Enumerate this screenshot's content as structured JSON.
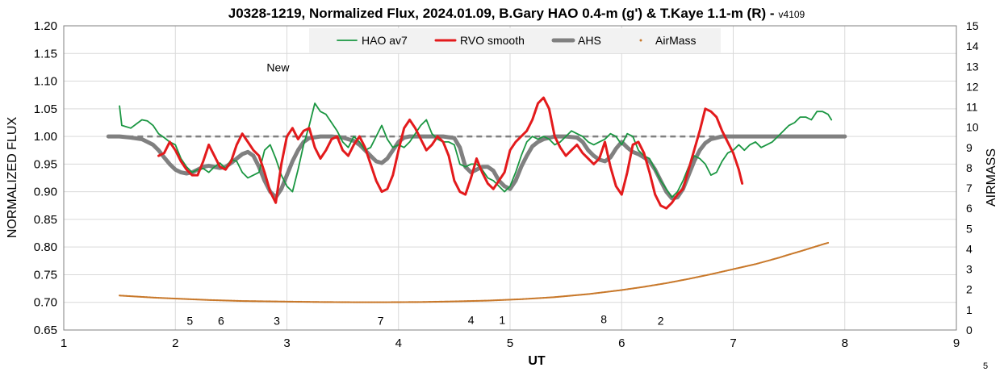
{
  "chart_data": {
    "type": "line",
    "title": "J0328-1219, Normalized Flux, 2024.01.09, B.Gary HAO 0.4-m (g') & T.Kaye 1.1-m (R) -",
    "title_version": "v4109",
    "xlabel": "UT",
    "ylabel": "NORMALIZED FLUX",
    "y2label": "AIRMASS",
    "xlim": [
      1,
      9
    ],
    "ylim": [
      0.65,
      1.2
    ],
    "y2lim": [
      0,
      15
    ],
    "x_ticks": [
      "1",
      "2",
      "3",
      "4",
      "5",
      "6",
      "7",
      "8",
      "9"
    ],
    "y_ticks": [
      "0.65",
      "0.70",
      "0.75",
      "0.80",
      "0.85",
      "0.90",
      "0.95",
      "1.00",
      "1.05",
      "1.10",
      "1.15",
      "1.20"
    ],
    "y2_ticks": [
      "0",
      "1",
      "2",
      "3",
      "4",
      "5",
      "6",
      "7",
      "8",
      "9",
      "10",
      "11",
      "12",
      "13",
      "14",
      "15"
    ],
    "grid": true,
    "legend_position": "top-center",
    "reference_line": 1.0,
    "annotations": [
      {
        "text": "New",
        "x": 2.92,
        "y": 1.125
      },
      {
        "text": "5",
        "x": 2.13,
        "y": 0.667
      },
      {
        "text": "6",
        "x": 2.41,
        "y": 0.667
      },
      {
        "text": "3",
        "x": 2.91,
        "y": 0.667
      },
      {
        "text": "7",
        "x": 3.84,
        "y": 0.667
      },
      {
        "text": "4",
        "x": 4.65,
        "y": 0.668
      },
      {
        "text": "1",
        "x": 4.93,
        "y": 0.668
      },
      {
        "text": "8",
        "x": 5.84,
        "y": 0.67
      },
      {
        "text": "2",
        "x": 6.35,
        "y": 0.667
      }
    ],
    "corner_label": "5",
    "series": [
      {
        "name": "HAO av7",
        "color": "#1a9641",
        "axis": "left",
        "x": [
          1.5,
          1.52,
          1.6,
          1.7,
          1.75,
          1.8,
          1.85,
          1.9,
          1.95,
          2.0,
          2.05,
          2.1,
          2.15,
          2.2,
          2.25,
          2.3,
          2.35,
          2.4,
          2.45,
          2.5,
          2.55,
          2.6,
          2.65,
          2.7,
          2.75,
          2.8,
          2.85,
          2.9,
          2.95,
          3.0,
          3.05,
          3.1,
          3.15,
          3.2,
          3.25,
          3.3,
          3.35,
          3.4,
          3.45,
          3.5,
          3.55,
          3.6,
          3.65,
          3.7,
          3.75,
          3.8,
          3.85,
          3.9,
          3.95,
          4.0,
          4.05,
          4.1,
          4.15,
          4.2,
          4.25,
          4.3,
          4.35,
          4.4,
          4.45,
          4.5,
          4.55,
          4.6,
          4.65,
          4.7,
          4.75,
          4.8,
          4.85,
          4.9,
          4.95,
          5.0,
          5.05,
          5.1,
          5.15,
          5.2,
          5.25,
          5.3,
          5.35,
          5.4,
          5.45,
          5.5,
          5.55,
          5.6,
          5.65,
          5.7,
          5.75,
          5.8,
          5.85,
          5.9,
          5.95,
          6.0,
          6.05,
          6.1,
          6.15,
          6.2,
          6.25,
          6.3,
          6.35,
          6.4,
          6.45,
          6.5,
          6.55,
          6.6,
          6.65,
          6.7,
          6.75,
          6.8,
          6.85,
          6.9,
          6.95,
          7.0,
          7.05,
          7.1,
          7.15,
          7.2,
          7.25,
          7.3,
          7.35,
          7.4,
          7.45,
          7.5,
          7.55,
          7.6,
          7.65,
          7.7,
          7.75,
          7.8,
          7.85,
          7.88
        ],
        "y": [
          1.055,
          1.02,
          1.015,
          1.03,
          1.028,
          1.02,
          1.005,
          0.998,
          0.99,
          0.985,
          0.96,
          0.945,
          0.935,
          0.94,
          0.942,
          0.935,
          0.945,
          0.952,
          0.942,
          0.958,
          0.955,
          0.935,
          0.925,
          0.93,
          0.935,
          0.975,
          0.985,
          0.96,
          0.93,
          0.91,
          0.9,
          0.94,
          0.985,
          1.02,
          1.06,
          1.045,
          1.04,
          1.025,
          1.01,
          0.99,
          0.98,
          1.0,
          0.99,
          0.975,
          0.98,
          1.0,
          1.02,
          0.995,
          0.98,
          0.985,
          0.98,
          0.99,
          1.005,
          1.02,
          1.03,
          1.005,
          0.995,
          0.99,
          0.99,
          0.985,
          0.95,
          0.945,
          0.95,
          0.95,
          0.94,
          0.925,
          0.92,
          0.91,
          0.9,
          0.91,
          0.935,
          0.965,
          0.99,
          1.0,
          0.995,
          1.0,
          0.995,
          0.985,
          0.99,
          1.0,
          1.01,
          1.005,
          1.0,
          0.99,
          0.985,
          0.99,
          0.995,
          1.005,
          1.0,
          0.985,
          1.005,
          1.0,
          0.975,
          0.965,
          0.96,
          0.94,
          0.92,
          0.905,
          0.89,
          0.9,
          0.92,
          0.945,
          0.965,
          0.96,
          0.95,
          0.93,
          0.935,
          0.955,
          0.97,
          0.975,
          0.985,
          0.975,
          0.985,
          0.99,
          0.98,
          0.985,
          0.99,
          1.0,
          1.01,
          1.02,
          1.025,
          1.035,
          1.035,
          1.03,
          1.045,
          1.045,
          1.04,
          1.03
        ]
      },
      {
        "name": "RVO smooth",
        "color": "#e31a1c",
        "axis": "left",
        "x": [
          1.85,
          1.9,
          1.95,
          2.0,
          2.05,
          2.1,
          2.15,
          2.2,
          2.25,
          2.3,
          2.35,
          2.4,
          2.45,
          2.5,
          2.55,
          2.6,
          2.65,
          2.7,
          2.75,
          2.8,
          2.85,
          2.9,
          2.95,
          3.0,
          3.05,
          3.1,
          3.15,
          3.2,
          3.25,
          3.3,
          3.35,
          3.4,
          3.45,
          3.5,
          3.55,
          3.6,
          3.65,
          3.7,
          3.75,
          3.8,
          3.85,
          3.9,
          3.95,
          4.0,
          4.05,
          4.1,
          4.15,
          4.2,
          4.25,
          4.3,
          4.35,
          4.4,
          4.45,
          4.5,
          4.55,
          4.6,
          4.65,
          4.7,
          4.75,
          4.8,
          4.85,
          4.9,
          4.95,
          5.0,
          5.05,
          5.1,
          5.15,
          5.2,
          5.25,
          5.3,
          5.35,
          5.4,
          5.45,
          5.5,
          5.55,
          5.6,
          5.65,
          5.7,
          5.75,
          5.8,
          5.85,
          5.9,
          5.95,
          6.0,
          6.05,
          6.1,
          6.15,
          6.2,
          6.25,
          6.3,
          6.35,
          6.4,
          6.45,
          6.5,
          6.55,
          6.6,
          6.65,
          6.7,
          6.75,
          6.8,
          6.85,
          6.9,
          6.95,
          7.0,
          7.05,
          7.08
        ],
        "y": [
          0.965,
          0.97,
          0.99,
          0.975,
          0.955,
          0.94,
          0.93,
          0.93,
          0.955,
          0.985,
          0.965,
          0.945,
          0.94,
          0.955,
          0.985,
          1.005,
          0.99,
          0.975,
          0.965,
          0.935,
          0.9,
          0.88,
          0.95,
          1.0,
          1.015,
          0.995,
          1.01,
          1.015,
          0.98,
          0.96,
          0.975,
          0.995,
          1.0,
          0.975,
          0.965,
          0.985,
          1.0,
          0.98,
          0.95,
          0.92,
          0.9,
          0.905,
          0.93,
          0.975,
          1.015,
          1.03,
          1.015,
          0.995,
          0.975,
          0.985,
          1.0,
          0.99,
          0.965,
          0.92,
          0.9,
          0.895,
          0.925,
          0.96,
          0.935,
          0.915,
          0.905,
          0.92,
          0.935,
          0.975,
          0.99,
          1.0,
          1.01,
          1.03,
          1.06,
          1.07,
          1.05,
          1.0,
          0.98,
          0.965,
          0.975,
          0.985,
          0.97,
          0.96,
          0.95,
          0.96,
          0.99,
          0.945,
          0.91,
          0.895,
          0.935,
          0.985,
          0.99,
          0.97,
          0.935,
          0.895,
          0.875,
          0.87,
          0.88,
          0.895,
          0.905,
          0.94,
          0.975,
          1.01,
          1.05,
          1.045,
          1.035,
          1.01,
          0.99,
          0.97,
          0.94,
          0.915
        ]
      },
      {
        "name": "AHS",
        "color": "#808080",
        "axis": "left",
        "x": [
          1.4,
          1.5,
          1.6,
          1.7,
          1.75,
          1.8,
          1.85,
          1.9,
          1.95,
          2.0,
          2.05,
          2.1,
          2.15,
          2.2,
          2.25,
          2.3,
          2.35,
          2.4,
          2.45,
          2.5,
          2.55,
          2.6,
          2.65,
          2.7,
          2.75,
          2.8,
          2.85,
          2.9,
          2.95,
          3.0,
          3.05,
          3.1,
          3.15,
          3.2,
          3.3,
          3.4,
          3.5,
          3.6,
          3.65,
          3.7,
          3.75,
          3.8,
          3.85,
          3.9,
          3.95,
          4.0,
          4.05,
          4.1,
          4.2,
          4.3,
          4.4,
          4.5,
          4.55,
          4.6,
          4.65,
          4.7,
          4.75,
          4.8,
          4.85,
          4.9,
          4.95,
          5.0,
          5.05,
          5.1,
          5.15,
          5.2,
          5.25,
          5.3,
          5.4,
          5.5,
          5.6,
          5.65,
          5.7,
          5.75,
          5.8,
          5.85,
          5.9,
          5.95,
          6.0,
          6.05,
          6.1,
          6.15,
          6.2,
          6.25,
          6.3,
          6.35,
          6.4,
          6.45,
          6.5,
          6.55,
          6.6,
          6.65,
          6.7,
          6.75,
          6.8,
          6.9,
          7.0,
          7.2,
          7.4,
          7.6,
          7.8,
          8.0
        ],
        "y": [
          1.0,
          1.0,
          0.998,
          0.995,
          0.99,
          0.985,
          0.975,
          0.962,
          0.95,
          0.94,
          0.935,
          0.933,
          0.935,
          0.94,
          0.945,
          0.947,
          0.945,
          0.943,
          0.945,
          0.952,
          0.96,
          0.968,
          0.972,
          0.965,
          0.945,
          0.92,
          0.9,
          0.89,
          0.905,
          0.93,
          0.955,
          0.975,
          0.99,
          0.997,
          1.0,
          1.0,
          0.998,
          0.992,
          0.985,
          0.975,
          0.965,
          0.955,
          0.952,
          0.96,
          0.975,
          0.99,
          0.998,
          1.0,
          1.0,
          1.0,
          1.0,
          0.997,
          0.98,
          0.945,
          0.935,
          0.94,
          0.945,
          0.945,
          0.938,
          0.92,
          0.91,
          0.905,
          0.92,
          0.945,
          0.965,
          0.982,
          0.99,
          0.995,
          1.0,
          1.0,
          0.998,
          0.99,
          0.975,
          0.965,
          0.958,
          0.955,
          0.962,
          0.978,
          0.99,
          0.98,
          0.972,
          0.968,
          0.962,
          0.955,
          0.94,
          0.92,
          0.9,
          0.888,
          0.89,
          0.905,
          0.93,
          0.955,
          0.975,
          0.988,
          0.995,
          1.0,
          1.0,
          1.0,
          1.0,
          1.0,
          1.0,
          1.0
        ]
      },
      {
        "name": "AirMass",
        "color": "#c8782a",
        "axis": "right",
        "x_start": 1.5,
        "x_end": 7.85,
        "x_step": 0.01,
        "x": [
          1.5,
          1.8,
          2.0,
          2.3,
          2.6,
          3.0,
          3.3,
          3.6,
          3.9,
          4.2,
          4.5,
          4.8,
          5.1,
          5.4,
          5.7,
          6.0,
          6.2,
          6.4,
          6.6,
          6.8,
          7.0,
          7.2,
          7.4,
          7.5,
          7.6,
          7.7,
          7.8,
          7.85
        ],
        "y": [
          1.7,
          1.6,
          1.55,
          1.48,
          1.43,
          1.4,
          1.38,
          1.37,
          1.37,
          1.38,
          1.41,
          1.45,
          1.52,
          1.62,
          1.77,
          1.97,
          2.13,
          2.31,
          2.52,
          2.75,
          3.0,
          3.25,
          3.55,
          3.72,
          3.88,
          4.05,
          4.22,
          4.3
        ]
      }
    ]
  }
}
